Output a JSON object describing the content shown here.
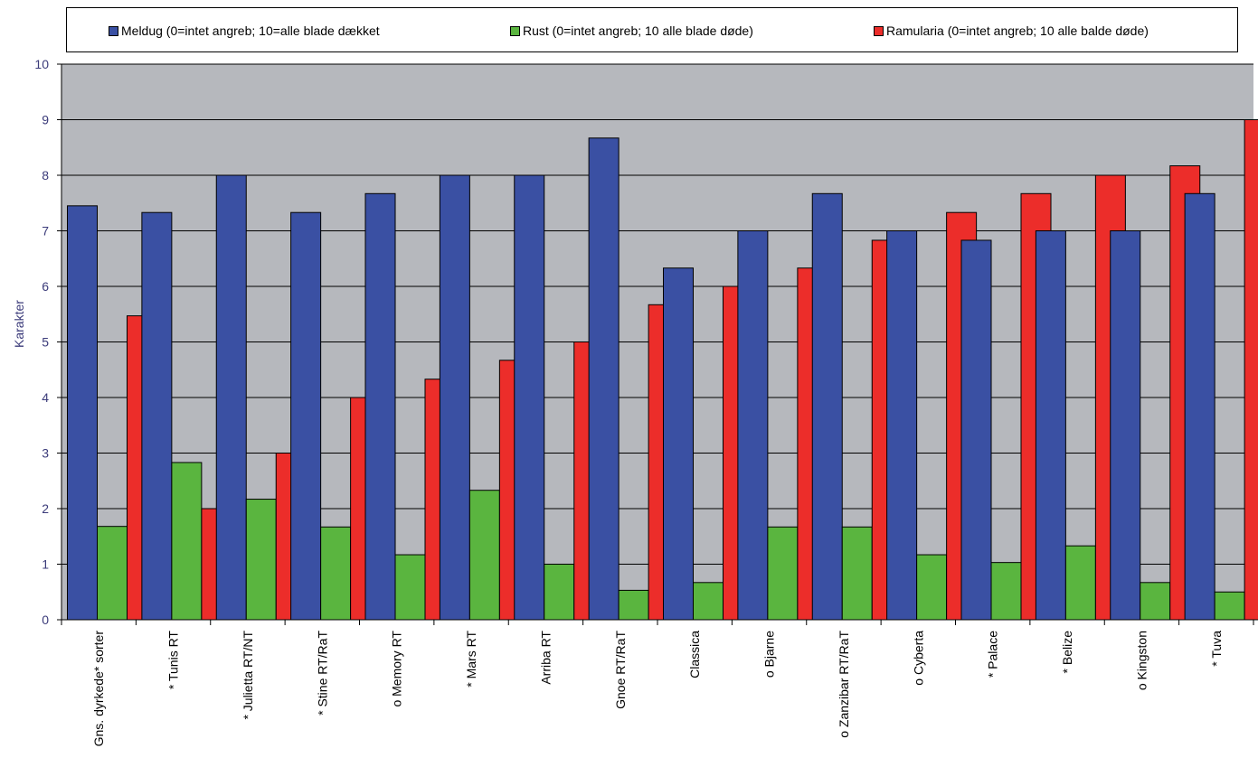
{
  "chart_data": {
    "type": "bar",
    "title": "",
    "xlabel": "",
    "ylabel": "Karakter",
    "ylim": [
      0,
      10
    ],
    "yticks": [
      "0",
      "1",
      "2",
      "3",
      "4",
      "5",
      "6",
      "7",
      "8",
      "9",
      "10"
    ],
    "grid": true,
    "legend_position": "top",
    "categories": [
      "Gns. dyrkede* sorter",
      "* Tunis RT",
      "* Julietta RT/NT",
      "* Stine RT/RaT",
      "o Memory RT",
      "* Mars RT",
      "Arriba RT",
      "Gnoe RT/RaT",
      "Classica",
      "o Bjarne",
      "o Zanzibar RT/RaT",
      "o Cyberta",
      "* Palace",
      "* Belize",
      "o Kingston",
      "* Tuva"
    ],
    "series": [
      {
        "name": "Meldug (0=intet angreb; 10=alle blade dækket",
        "color": "#3a50a3",
        "values": [
          7.45,
          7.33,
          8.0,
          7.33,
          7.67,
          8.0,
          8.0,
          8.67,
          6.33,
          7.0,
          7.67,
          7.0,
          6.83,
          7.0,
          7.0,
          7.67
        ]
      },
      {
        "name": "Rust (0=intet angreb; 10 alle blade døde)",
        "color": "#5ab53f",
        "values": [
          1.68,
          2.83,
          2.17,
          1.67,
          1.17,
          2.33,
          1.0,
          0.53,
          0.67,
          1.67,
          1.67,
          1.17,
          1.03,
          1.33,
          0.67,
          0.5
        ]
      },
      {
        "name": "Ramularia (0=intet angreb; 10 alle balde døde)",
        "color": "#ec2d2a",
        "values": [
          5.47,
          2.0,
          3.0,
          4.0,
          4.33,
          4.67,
          5.0,
          5.67,
          6.0,
          6.33,
          6.83,
          7.33,
          7.67,
          8.0,
          8.17,
          9.0
        ]
      }
    ],
    "colors": {
      "plot_background": "#b6b8bd",
      "gridline": "#000000"
    }
  }
}
